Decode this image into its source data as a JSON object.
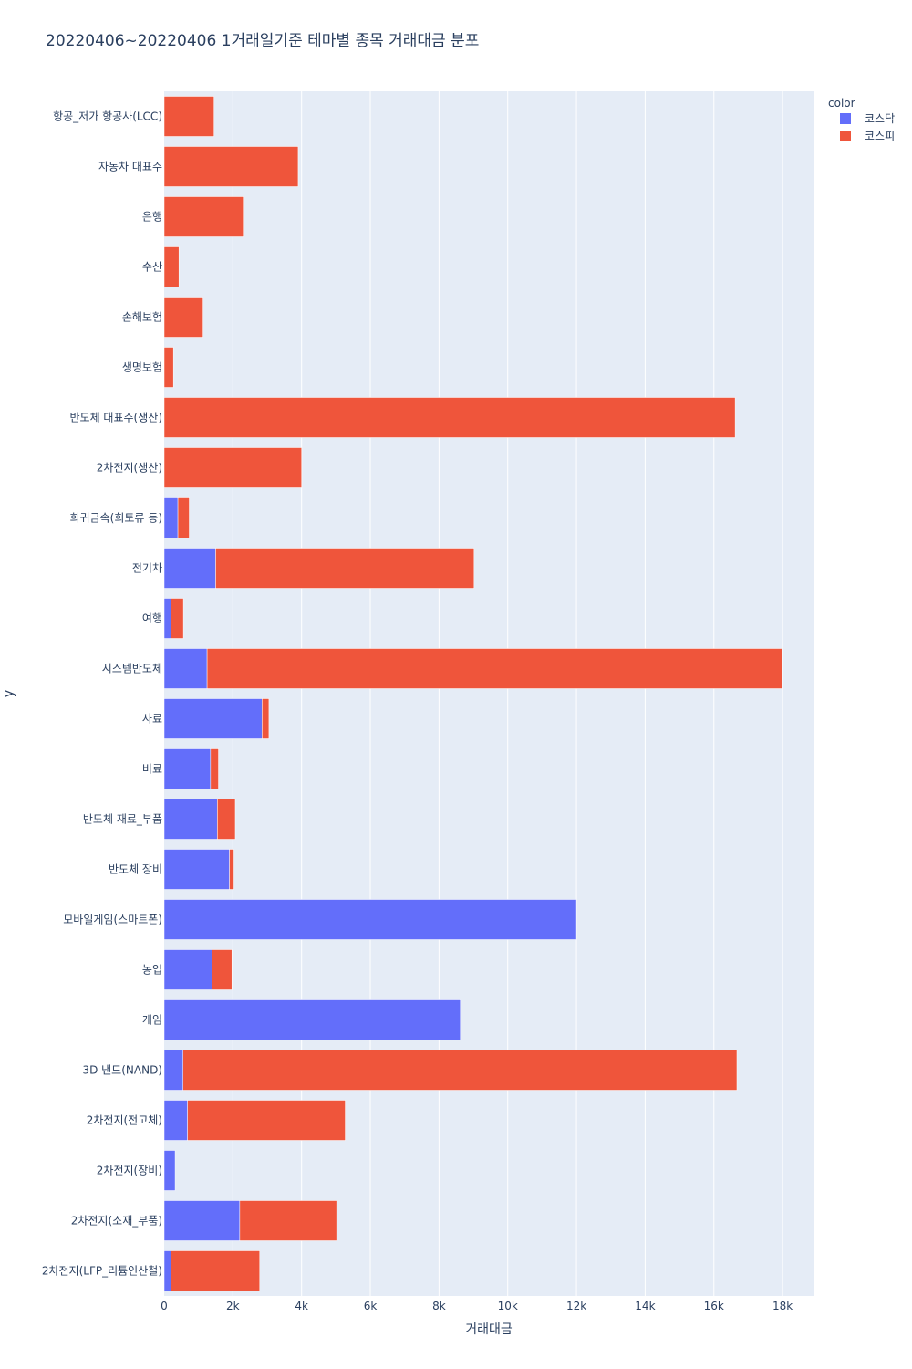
{
  "colors": {
    "kosdaq": "#636efa",
    "kospi": "#ef553b",
    "plot_bg": "#e5ecf6",
    "grid": "#ffffff",
    "text": "#2a3f5f"
  },
  "chart_data": {
    "type": "bar",
    "orientation": "horizontal",
    "barmode": "stack",
    "title": "20220406~20220406 1거래일기준 테마별 종목 거래대금 분포",
    "xlabel": "거래대금",
    "ylabel": "y",
    "xlim": [
      0,
      18900
    ],
    "x_ticks": [
      0,
      2000,
      4000,
      6000,
      8000,
      10000,
      12000,
      14000,
      16000,
      18000
    ],
    "x_tick_labels": [
      "0",
      "2k",
      "4k",
      "6k",
      "8k",
      "10k",
      "12k",
      "14k",
      "16k",
      "18k"
    ],
    "legend_title": "color",
    "legend_position": "top-right",
    "categories": [
      "항공_저가 항공사(LCC)",
      "자동차 대표주",
      "은행",
      "수산",
      "손해보험",
      "생명보험",
      "반도체 대표주(생산)",
      "2차전지(생산)",
      "희귀금속(희토류 등)",
      "전기차",
      "여행",
      "시스템반도체",
      "사료",
      "비료",
      "반도체 재료_부품",
      "반도체 장비",
      "모바일게임(스마트폰)",
      "농업",
      "게임",
      "3D 낸드(NAND)",
      "2차전지(전고체)",
      "2차전지(장비)",
      "2차전지(소재_부품)",
      "2차전지(LFP_리튬인산철)"
    ],
    "series": [
      {
        "name": "코스닥",
        "color": "#636efa",
        "values": [
          0,
          0,
          0,
          0,
          0,
          0,
          0,
          0,
          400,
          1500,
          200,
          1250,
          2850,
          1350,
          1550,
          1900,
          12000,
          1400,
          8620,
          550,
          680,
          320,
          2200,
          200
        ]
      },
      {
        "name": "코스피",
        "color": "#ef553b",
        "values": [
          1450,
          3900,
          2300,
          430,
          1130,
          270,
          16620,
          4000,
          330,
          7520,
          360,
          16730,
          200,
          230,
          520,
          130,
          0,
          570,
          0,
          16120,
          4590,
          0,
          2820,
          2580
        ]
      }
    ]
  }
}
